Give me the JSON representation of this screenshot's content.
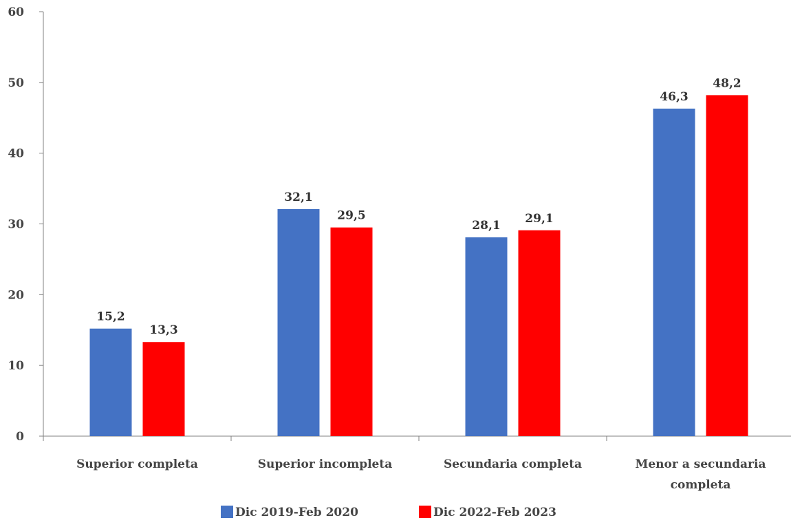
{
  "chart_data": {
    "type": "bar",
    "title": "",
    "xlabel": "",
    "ylabel": "",
    "categories": [
      [
        "Superior completa"
      ],
      [
        "Superior incompleta"
      ],
      [
        "Secundaria completa"
      ],
      [
        "Menor a secundaria",
        "completa"
      ]
    ],
    "series": [
      {
        "name": "Dic 2019-Feb 2020",
        "color": "#4472C4",
        "values": [
          15.2,
          32.1,
          28.1,
          46.3
        ],
        "labels": [
          "15,2",
          "32,1",
          "28,1",
          "46,3"
        ]
      },
      {
        "name": "Dic 2022-Feb 2023",
        "color": "#FF0000",
        "values": [
          13.3,
          29.5,
          29.1,
          48.2
        ],
        "labels": [
          "13,3",
          "29,5",
          "29,1",
          "48,2"
        ]
      }
    ],
    "ylim": [
      0,
      60
    ],
    "yticks": [
      0,
      10,
      20,
      30,
      40,
      50,
      60
    ],
    "ytick_labels": [
      "0",
      "10",
      "20",
      "30",
      "40",
      "50",
      "60"
    ],
    "grid": false,
    "legend_position": "bottom-center"
  }
}
